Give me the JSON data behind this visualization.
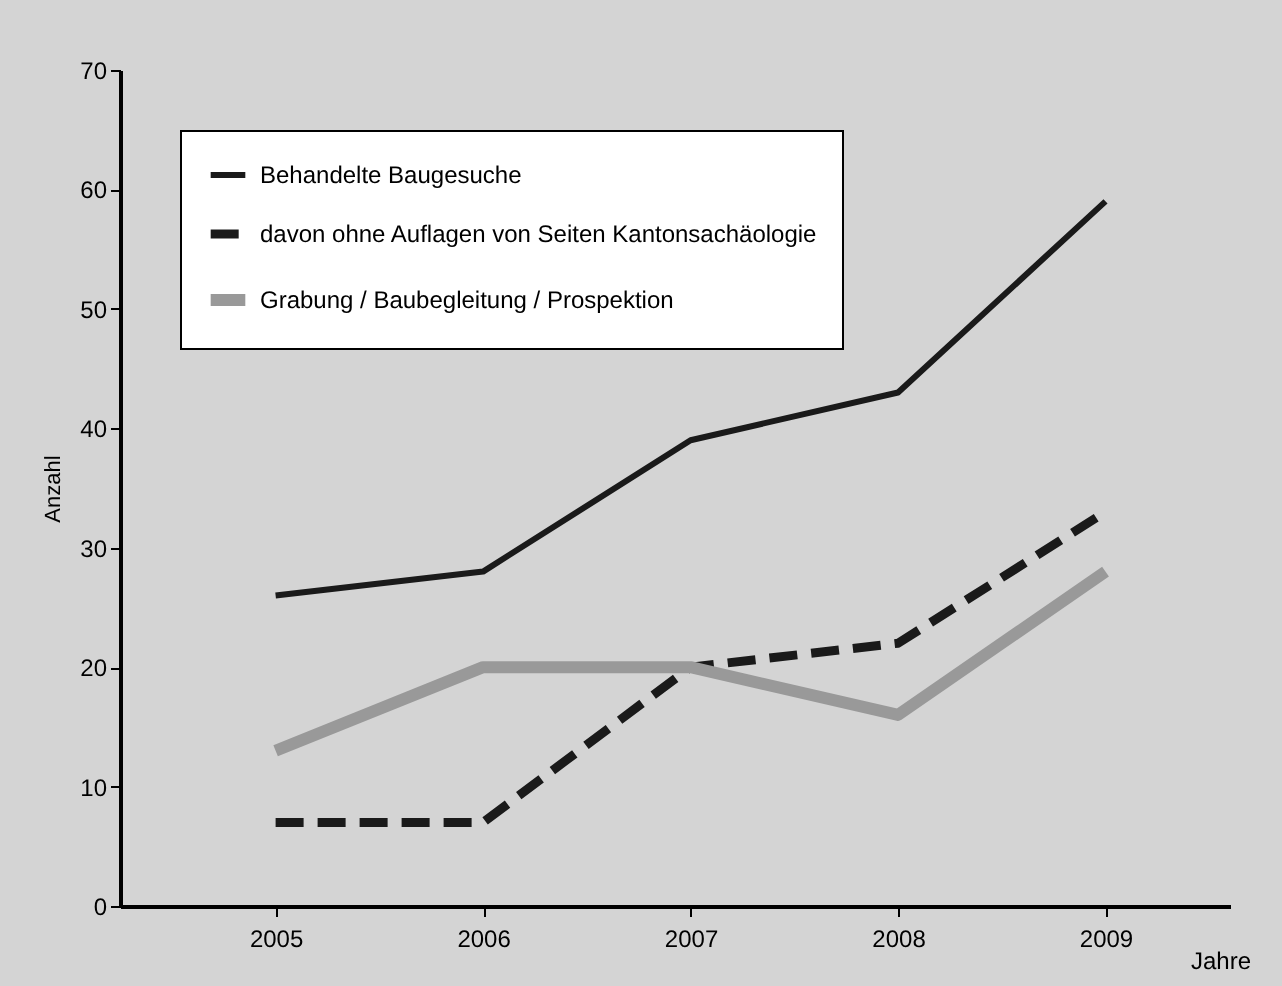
{
  "chart_data": {
    "type": "line",
    "xlabel": "Jahre",
    "ylabel": "Anzahl",
    "categories": [
      "2005",
      "2006",
      "2007",
      "2008",
      "2009"
    ],
    "series": [
      {
        "name": "Behandelte Baugesuche",
        "color": "#1a1a1a",
        "line_style": "solid",
        "values": [
          26,
          28,
          39,
          43,
          59
        ]
      },
      {
        "name": "davon ohne Auflagen von Seiten Kantonsachäologie",
        "color": "#1a1a1a",
        "line_style": "dashed",
        "values": [
          7,
          7,
          20,
          22,
          33
        ]
      },
      {
        "name": "Grabung / Baubegleitung / Prospektion",
        "color": "#999999",
        "line_style": "solid",
        "values": [
          13,
          20,
          20,
          16,
          28
        ]
      }
    ],
    "ylim": [
      0,
      70
    ],
    "yticks": [
      0,
      10,
      20,
      30,
      40,
      50,
      60,
      70
    ],
    "grid": false,
    "legend": "top left",
    "marker": "none"
  }
}
